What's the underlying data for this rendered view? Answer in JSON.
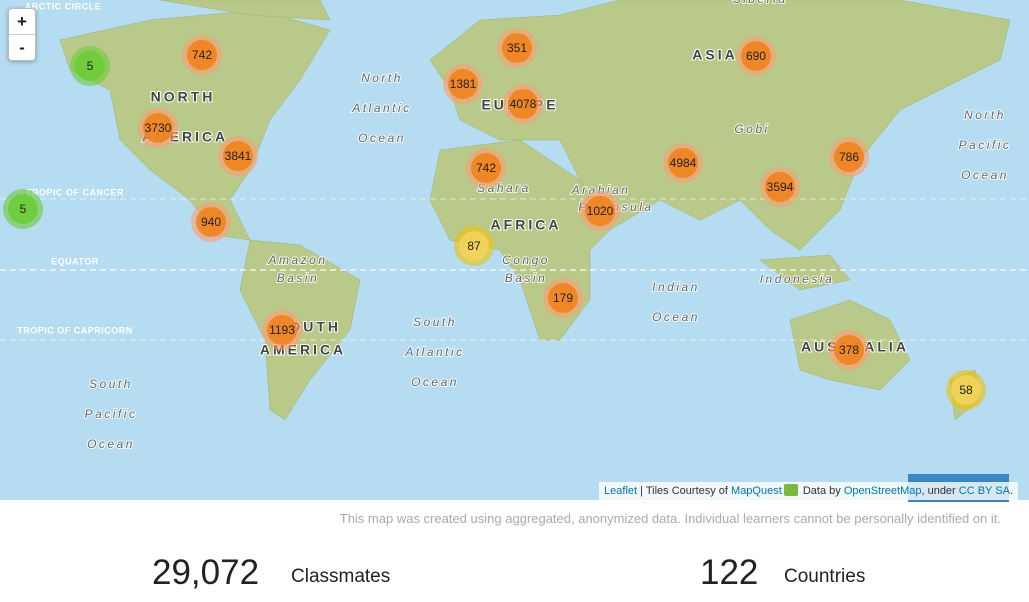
{
  "zoom": {
    "in": "+",
    "out": "-"
  },
  "map_labels": [
    "ARCTIC CIRCLE",
    "TROPIC OF CANCER",
    "EQUATOR",
    "TROPIC OF CAPRICORN",
    "Siberia",
    "NORTH",
    "AMERICA",
    "North",
    "Atlantic",
    "Ocean",
    "EUROPE",
    "ASIA",
    "Gobi",
    "North",
    "Pacific",
    "Ocean",
    "Sahara",
    "AFRICA",
    "Arabian",
    "Peninsula",
    "Amazon",
    "Basin",
    "Congo",
    "Basin",
    "Indian",
    "Ocean",
    "Indonesia",
    "SOUTH",
    "AMERICA",
    "South",
    "Atlantic",
    "Ocean",
    "AUSTRALIA",
    "South",
    "Pacific",
    "Ocean"
  ],
  "clusters": [
    742,
    5,
    3730,
    3841,
    940,
    5,
    1193,
    351,
    1381,
    4078,
    742,
    87,
    1020,
    179,
    690,
    4984,
    786,
    3594,
    378,
    58
  ],
  "attribution": {
    "leaflet": "Leaflet",
    "tiles": " | Tiles Courtesy of ",
    "mapquest": "MapQuest",
    "data_by": " Data by ",
    "osm": "OpenStreetMap",
    "under": ", under ",
    "license": "CC BY SA",
    "end": "."
  },
  "disclaimer": "This map was created using aggregated, anonymized data. Individual learners cannot be personally identified on it.",
  "stats": [
    {
      "number": "29,072",
      "label": "Classmates"
    },
    {
      "number": "122",
      "label": "Countries"
    }
  ]
}
